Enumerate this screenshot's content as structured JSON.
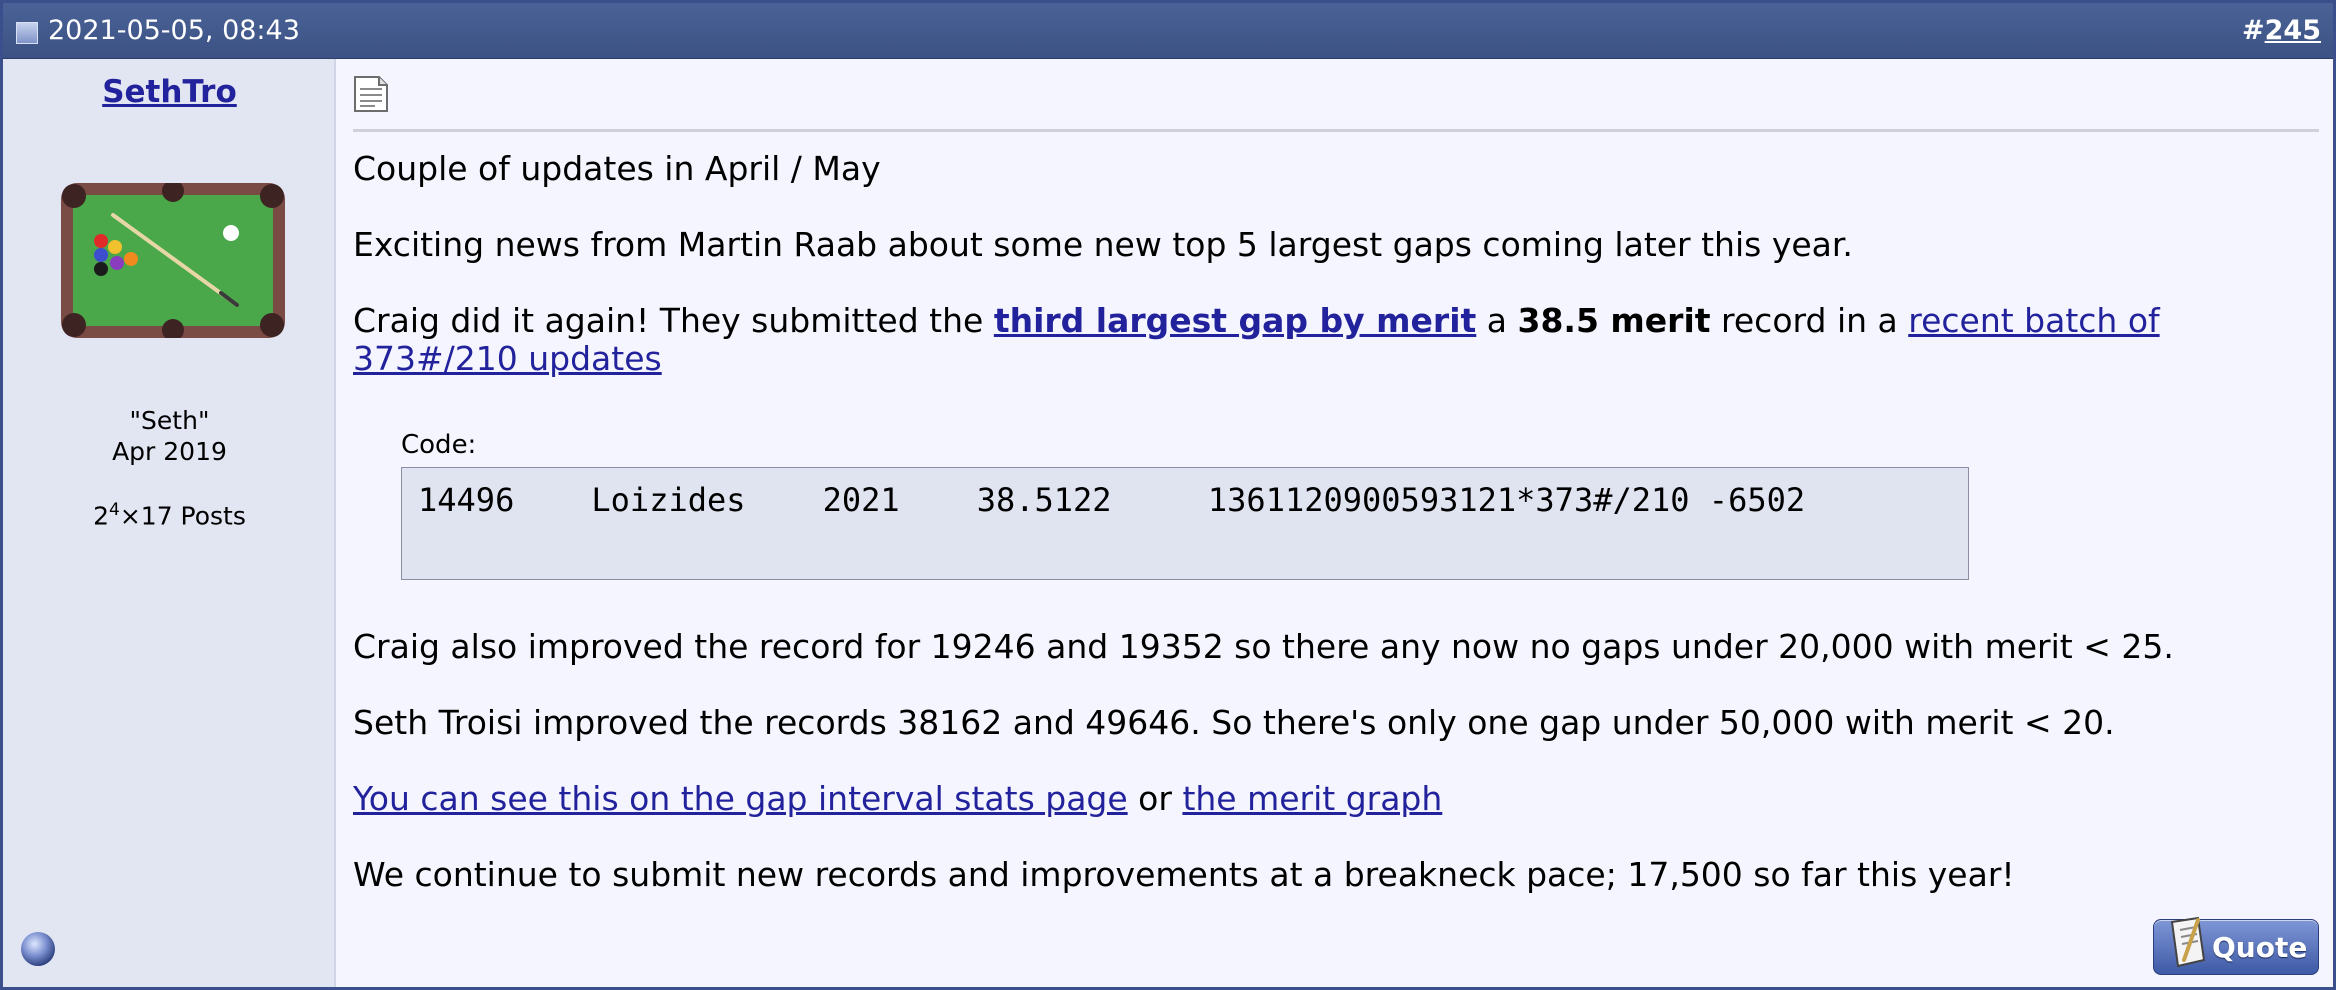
{
  "header": {
    "date": "2021-05-05, 08:43",
    "post_number_prefix": "#",
    "post_number": "245"
  },
  "user": {
    "username": "SethTro",
    "avatar_icon": "pool-table-icon",
    "title": "\"Seth\"",
    "join_date": "Apr 2019",
    "posts_base": "2",
    "posts_exp": "4",
    "posts_rest": "×17 Posts"
  },
  "message": {
    "doc_icon": "document-icon",
    "p1": "Couple of updates in April / May",
    "p2": "Exciting news from Martin Raab about some new top 5 largest gaps coming later this year.",
    "p3_start": "Craig did it again! They submitted the ",
    "p3_link1": "third largest gap by merit",
    "p3_mid1": " a ",
    "p3_bold": "38.5 merit",
    "p3_mid2": " record in a ",
    "p3_link2": "recent batch of 373#/210 updates",
    "code_label": "Code:",
    "code_text": "14496    Loizides    2021    38.5122     1361120900593121*373#/210 -6502",
    "p4": "Craig also improved the record for 19246 and 19352 so there any now no gaps under 20,000 with merit < 25.",
    "p5": "Seth Troisi improved the records 38162 and 49646. So there's only one gap under 50,000 with merit < 20.",
    "p6_link1": "You can see this on the gap interval stats page",
    "p6_mid": " or ",
    "p6_link2": "the merit graph",
    "p7": "We continue to submit new records and improvements at a breakneck pace; 17,500 so far this year!"
  },
  "footer": {
    "status_icon": "online-status-icon",
    "quote_label": "Quote"
  },
  "colors": {
    "header": "#3c5285",
    "link": "#22229c",
    "user_panel": "#e2e5f2",
    "content_bg": "#f5f5ff",
    "code_bg": "#e0e3f0"
  }
}
